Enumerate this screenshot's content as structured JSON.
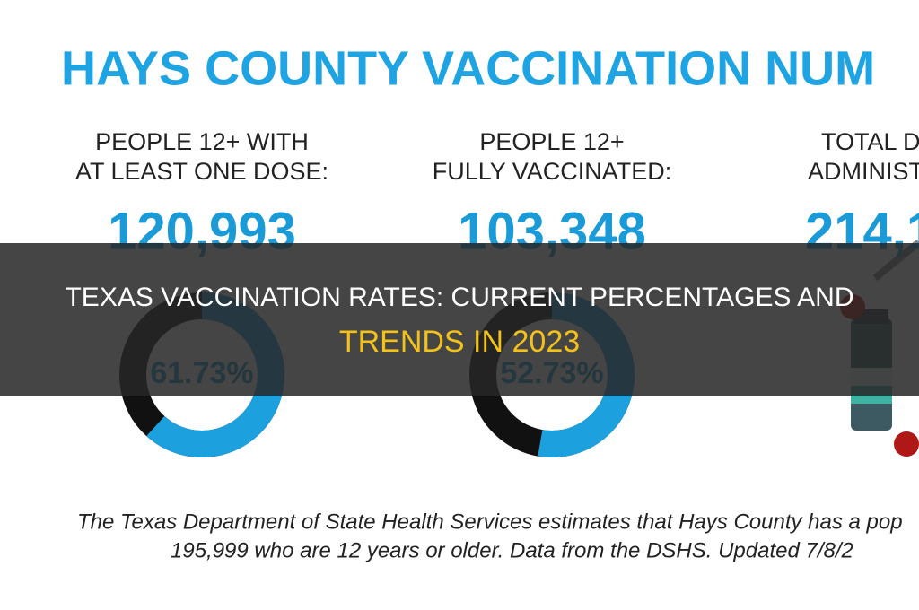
{
  "infographic": {
    "title": "HAYS COUNTY VACCINATION NUM",
    "columns": [
      {
        "heading": [
          "PEOPLE  12+ WITH",
          "AT LEAST ONE DOSE:"
        ],
        "number": "120,993",
        "percent": 61.73,
        "percent_label": "61.73%"
      },
      {
        "heading": [
          "PEOPLE 12+",
          "FULLY VACCINATED:"
        ],
        "number": "103,348",
        "percent": 52.73,
        "percent_label": "52.73%"
      },
      {
        "heading": [
          "TOTAL D",
          "ADMINIST"
        ],
        "number": "214,1"
      }
    ],
    "footer": [
      "The Texas Department of State Health Services estimates that Hays County has a pop",
      "195,999 who are 12 years or older. Data from the DSHS. Updated 7/8/2"
    ]
  },
  "banner": {
    "line1": "TEXAS VACCINATION RATES: CURRENT PERCENTAGES AND",
    "line2": "TRENDS IN 2023"
  }
}
